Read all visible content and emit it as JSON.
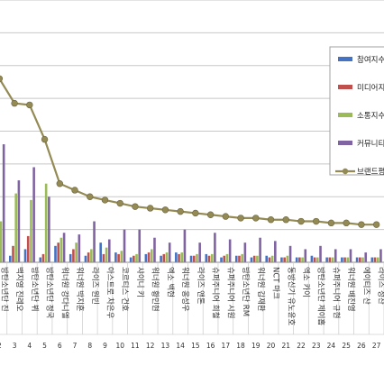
{
  "chart_data": {
    "type": "bar",
    "categories": [
      "방탄소년단 진",
      "백지영 진레오",
      "방탄소년단 뷔",
      "방탄소년단 정국",
      "워너원 강다니엘",
      "워너원 박지훈",
      "라이즈 원빈",
      "아스트로 차은우",
      "코르티스 건호",
      "샤이니 키",
      "워너원 황민현",
      "엑소 백현",
      "워너원 옹성우",
      "라이즈 앤톤",
      "슈퍼주니어 희철",
      "슈퍼주니어 시원",
      "방탄소년단 RM",
      "워너원 김재환",
      "NCT 마크",
      "동방신기 유노윤호",
      "엑소 카이",
      "방탄소년단 제이홉",
      "슈퍼주니어 규현",
      "워너원 배진영",
      "에이티즈 산",
      "라이즈 성찬"
    ],
    "rank_labels": [
      "2",
      "3",
      "4",
      "5",
      "6",
      "7",
      "8",
      "9",
      "10",
      "11",
      "12",
      "13",
      "14",
      "15",
      "16",
      "17",
      "18",
      "19",
      "20",
      "21",
      "22",
      "23",
      "24",
      "25",
      "26",
      "27"
    ],
    "series": [
      {
        "name": "참여지수",
        "color": "#4472C4",
        "values": [
          6,
          4,
          8,
          3,
          10,
          5,
          4,
          12,
          6,
          3,
          5,
          4,
          6,
          4,
          5,
          3,
          4,
          3,
          4,
          3,
          3,
          4,
          3,
          3,
          3,
          3
        ]
      },
      {
        "name": "미디어지수",
        "color": "#C0504D",
        "values": [
          5,
          10,
          16,
          5,
          12,
          8,
          6,
          5,
          5,
          4,
          6,
          5,
          5,
          4,
          4,
          4,
          4,
          4,
          3,
          3,
          3,
          3,
          3,
          3,
          3,
          3
        ]
      },
      {
        "name": "소통지수",
        "color": "#9BBB59",
        "values": [
          25,
          42,
          38,
          48,
          15,
          12,
          8,
          9,
          7,
          5,
          8,
          6,
          6,
          5,
          5,
          5,
          5,
          4,
          4,
          4,
          3,
          3,
          3,
          3,
          3,
          3
        ]
      },
      {
        "name": "커뮤니티지수",
        "color": "#8064A2",
        "values": [
          72,
          50,
          58,
          40,
          18,
          17,
          25,
          14,
          20,
          20,
          15,
          12,
          20,
          12,
          18,
          14,
          12,
          15,
          13,
          10,
          8,
          10,
          8,
          8,
          6,
          8
        ]
      },
      {
        "name": "브랜드평판지수",
        "color": "#948A54",
        "kind": "line",
        "values": [
          112,
          97,
          96,
          75,
          48,
          44,
          40,
          38,
          36,
          34,
          33,
          32,
          31,
          30,
          29,
          28,
          27,
          27,
          26,
          26,
          25,
          25,
          24,
          24,
          23,
          23
        ]
      }
    ],
    "ylim": [
      0,
      160
    ],
    "y_ticks": [
      0,
      20,
      40,
      60,
      80,
      100,
      120,
      140,
      160
    ],
    "title": "",
    "xlabel": "",
    "ylabel": "",
    "legend_position": "right",
    "grid": true
  }
}
